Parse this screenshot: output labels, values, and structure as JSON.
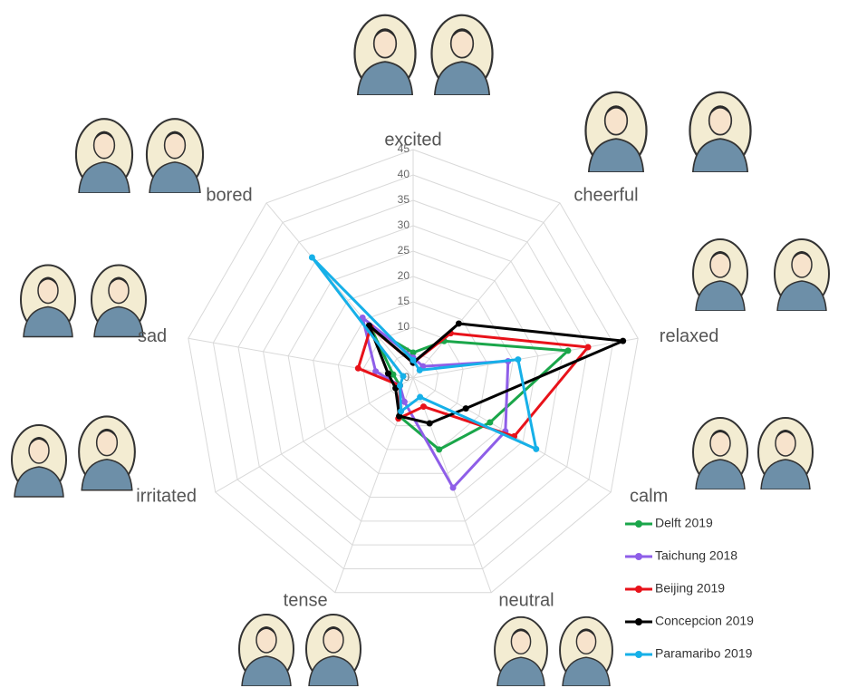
{
  "chart_data": {
    "type": "radar",
    "categories": [
      "excited",
      "cheerful",
      "relaxed",
      "calm",
      "neutral",
      "tense",
      "irritated",
      "sad",
      "bored"
    ],
    "ylim": [
      0,
      45
    ],
    "yticks": [
      0,
      5,
      10,
      15,
      20,
      25,
      30,
      35,
      40,
      45
    ],
    "grid": true,
    "legend": "lower right",
    "series": [
      {
        "name": "Delft 2019",
        "color": "#1aa64a",
        "values": [
          5,
          9.5,
          31,
          17.5,
          15,
          8,
          3,
          4,
          13
        ]
      },
      {
        "name": "Taichung 2018",
        "color": "#8e5ee8",
        "values": [
          4,
          3,
          19,
          21,
          23,
          5,
          3,
          7.5,
          15.5
        ]
      },
      {
        "name": "Beijing 2019",
        "color": "#e8121a",
        "values": [
          3,
          11.5,
          35,
          23,
          6,
          8.5,
          3,
          11,
          13
        ]
      },
      {
        "name": "Concepcion 2019",
        "color": "#000000",
        "values": [
          3,
          14,
          42,
          12,
          9.5,
          8,
          4,
          5,
          13.5
        ]
      },
      {
        "name": "Paramaribo 2019",
        "color": "#16b0e8",
        "values": [
          3.5,
          2,
          21,
          28,
          4,
          7,
          3,
          2,
          31
        ]
      }
    ]
  }
}
